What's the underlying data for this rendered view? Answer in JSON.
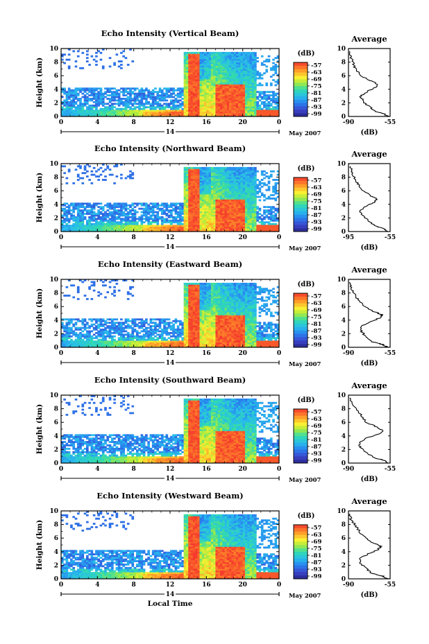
{
  "figure": {
    "xlabel": "Local Time",
    "date_label": "May 2007",
    "colorbar_unit": "(dB)",
    "profile_title": "Average",
    "profile_xlabel": "(dB)"
  },
  "chart_data": [
    {
      "type": "heatmap",
      "title": "Echo Intensity (Vertical Beam)",
      "ylabel": "Height (km)",
      "xticks": [
        "0",
        "4",
        "8",
        "12",
        "16",
        "20",
        "0"
      ],
      "xlim": [
        0,
        24
      ],
      "ylim": [
        0,
        10
      ],
      "yticks": [
        0,
        2,
        4,
        6,
        8,
        10
      ],
      "day_label": "14",
      "colorbar_ticks": [
        "-57",
        "-63",
        "-69",
        "-75",
        "-81",
        "-87",
        "-93",
        "-99"
      ],
      "colorbar_range": [
        -102,
        -54
      ],
      "profile": {
        "title": "Average",
        "xlim": [
          -90,
          -55
        ],
        "xtick_labels": [
          "-90",
          "-55"
        ],
        "ylim": [
          0,
          10
        ],
        "yticks": [
          0,
          2,
          4,
          6,
          8,
          10
        ],
        "points": [
          [
            -57,
            0
          ],
          [
            -60,
            0.4
          ],
          [
            -68,
            0.8
          ],
          [
            -73,
            1.5
          ],
          [
            -78,
            2.3
          ],
          [
            -80,
            3.0
          ],
          [
            -74,
            3.7
          ],
          [
            -67,
            4.3
          ],
          [
            -66,
            4.8
          ],
          [
            -72,
            5.3
          ],
          [
            -79,
            6.0
          ],
          [
            -84,
            7.0
          ],
          [
            -86,
            7.8
          ],
          [
            -88,
            8.8
          ],
          [
            -89,
            9.6
          ]
        ]
      }
    },
    {
      "type": "heatmap",
      "title": "Echo Intensity (Northward Beam)",
      "ylabel": "Height (km)",
      "xticks": [
        "0",
        "4",
        "8",
        "12",
        "16",
        "20",
        "0"
      ],
      "xlim": [
        0,
        24
      ],
      "ylim": [
        0,
        10
      ],
      "yticks": [
        0,
        2,
        4,
        6,
        8,
        10
      ],
      "day_label": "14",
      "colorbar_ticks": [
        "-57",
        "-63",
        "-69",
        "-75",
        "-81",
        "-87",
        "-93",
        "-99"
      ],
      "colorbar_range": [
        -102,
        -54
      ],
      "profile": {
        "title": "Average",
        "xlim": [
          -95,
          -55
        ],
        "xtick_labels": [
          "-95",
          "-55"
        ],
        "ylim": [
          0,
          10
        ],
        "yticks": [
          0,
          2,
          4,
          6,
          8,
          10
        ],
        "points": [
          [
            -58,
            0
          ],
          [
            -61,
            0.4
          ],
          [
            -69,
            0.8
          ],
          [
            -75,
            1.5
          ],
          [
            -81,
            2.3
          ],
          [
            -84,
            3.0
          ],
          [
            -79,
            3.7
          ],
          [
            -70,
            4.3
          ],
          [
            -68,
            4.8
          ],
          [
            -74,
            5.3
          ],
          [
            -81,
            6.0
          ],
          [
            -86,
            7.0
          ],
          [
            -89,
            7.8
          ],
          [
            -92,
            8.8
          ],
          [
            -93,
            9.6
          ]
        ]
      }
    },
    {
      "type": "heatmap",
      "title": "Echo Intensity (Eastward Beam)",
      "ylabel": "Height (km)",
      "xticks": [
        "0",
        "4",
        "8",
        "12",
        "16",
        "20",
        "0"
      ],
      "xlim": [
        0,
        24
      ],
      "ylim": [
        0,
        10
      ],
      "yticks": [
        0,
        2,
        4,
        6,
        8,
        10
      ],
      "day_label": "14",
      "colorbar_ticks": [
        "-57",
        "-63",
        "-69",
        "-75",
        "-81",
        "-87",
        "-93",
        "-99"
      ],
      "colorbar_range": [
        -102,
        -54
      ],
      "profile": {
        "title": "Average",
        "xlim": [
          -90,
          -55
        ],
        "xtick_labels": [
          "-90",
          "-55"
        ],
        "ylim": [
          0,
          10
        ],
        "yticks": [
          0,
          2,
          4,
          6,
          8,
          10
        ],
        "points": [
          [
            -57,
            0
          ],
          [
            -61,
            0.4
          ],
          [
            -70,
            0.8
          ],
          [
            -75,
            1.5
          ],
          [
            -79,
            2.3
          ],
          [
            -80,
            3.0
          ],
          [
            -73,
            3.7
          ],
          [
            -64,
            4.3
          ],
          [
            -62,
            4.8
          ],
          [
            -69,
            5.3
          ],
          [
            -77,
            6.0
          ],
          [
            -82,
            7.0
          ],
          [
            -85,
            7.8
          ],
          [
            -88,
            8.8
          ],
          [
            -89,
            9.6
          ]
        ]
      }
    },
    {
      "type": "heatmap",
      "title": "Echo Intensity (Southward Beam)",
      "ylabel": "Height (km)",
      "xticks": [
        "0",
        "4",
        "8",
        "12",
        "16",
        "20",
        "0"
      ],
      "xlim": [
        0,
        24
      ],
      "ylim": [
        0,
        10
      ],
      "yticks": [
        0,
        2,
        4,
        6,
        8,
        10
      ],
      "day_label": "14",
      "colorbar_ticks": [
        "-57",
        "-63",
        "-69",
        "-75",
        "-81",
        "-87",
        "-93",
        "-99"
      ],
      "colorbar_range": [
        -102,
        -54
      ],
      "profile": {
        "title": "Average",
        "xlim": [
          -90,
          -55
        ],
        "xtick_labels": [
          "-90",
          "-55"
        ],
        "ylim": [
          0,
          10
        ],
        "yticks": [
          0,
          2,
          4,
          6,
          8,
          10
        ],
        "points": [
          [
            -56,
            0
          ],
          [
            -60,
            0.4
          ],
          [
            -69,
            0.8
          ],
          [
            -75,
            1.5
          ],
          [
            -80,
            2.3
          ],
          [
            -81,
            3.0
          ],
          [
            -75,
            3.7
          ],
          [
            -64,
            4.3
          ],
          [
            -61,
            4.8
          ],
          [
            -66,
            5.3
          ],
          [
            -75,
            6.0
          ],
          [
            -79,
            7.0
          ],
          [
            -83,
            7.8
          ],
          [
            -87,
            8.8
          ],
          [
            -89,
            9.6
          ]
        ]
      }
    },
    {
      "type": "heatmap",
      "title": "Echo Intensity (Westward Beam)",
      "ylabel": "Height (km)",
      "xticks": [
        "0",
        "4",
        "8",
        "12",
        "16",
        "20",
        "0"
      ],
      "xlim": [
        0,
        24
      ],
      "ylim": [
        0,
        10
      ],
      "yticks": [
        0,
        2,
        4,
        6,
        8,
        10
      ],
      "day_label": "14",
      "colorbar_ticks": [
        "-57",
        "-63",
        "-69",
        "-75",
        "-81",
        "-87",
        "-93",
        "-99"
      ],
      "colorbar_range": [
        -102,
        -54
      ],
      "profile": {
        "title": "Average",
        "xlim": [
          -90,
          -55
        ],
        "xtick_labels": [
          "-90",
          "-55"
        ],
        "ylim": [
          0,
          10
        ],
        "yticks": [
          0,
          2,
          4,
          6,
          8,
          10
        ],
        "points": [
          [
            -57,
            0
          ],
          [
            -61,
            0.4
          ],
          [
            -70,
            0.8
          ],
          [
            -75,
            1.5
          ],
          [
            -80,
            2.3
          ],
          [
            -80,
            3.0
          ],
          [
            -73,
            3.7
          ],
          [
            -65,
            4.3
          ],
          [
            -63,
            4.8
          ],
          [
            -69,
            5.3
          ],
          [
            -76,
            6.0
          ],
          [
            -81,
            7.0
          ],
          [
            -84,
            7.8
          ],
          [
            -88,
            8.8
          ],
          [
            -89,
            9.6
          ]
        ]
      }
    }
  ]
}
